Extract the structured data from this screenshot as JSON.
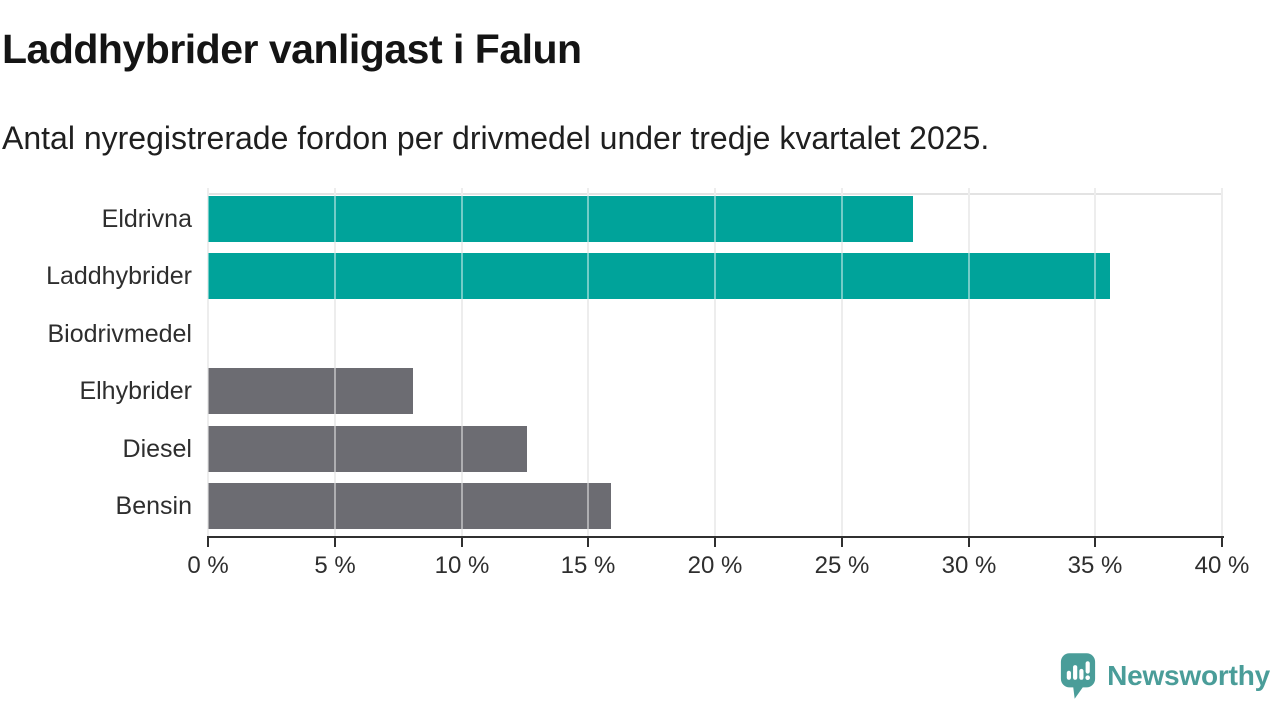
{
  "header": {
    "title": "Laddhybrider vanligast i Falun",
    "subtitle": "Antal nyregistrerade fordon per drivmedel under tredje kvartalet 2025."
  },
  "chart_data": {
    "type": "bar",
    "orientation": "horizontal",
    "title": "Laddhybrider vanligast i Falun",
    "subtitle": "Antal nyregistrerade fordon per drivmedel under tredje kvartalet 2025.",
    "categories": [
      "Eldrivna",
      "Laddhybrider",
      "Biodrivmedel",
      "Elhybrider",
      "Diesel",
      "Bensin"
    ],
    "values": [
      27.8,
      35.6,
      0,
      8.1,
      12.6,
      15.9
    ],
    "unit": "%",
    "bar_color_keys": [
      "highlight",
      "highlight",
      "default",
      "default",
      "default",
      "default"
    ],
    "colors": {
      "highlight": "#00a39a",
      "default": "#6c6c72",
      "gridline": "#dfdfdf",
      "axis": "#303030",
      "text": "#2e2e2e"
    },
    "xlabel": "",
    "ylabel": "",
    "xlim": [
      0,
      40
    ],
    "x_tick_values": [
      0,
      5,
      10,
      15,
      20,
      25,
      30,
      35,
      40
    ],
    "x_tick_labels": [
      "0 %",
      "5 %",
      "10 %",
      "15 %",
      "20 %",
      "25 %",
      "30 %",
      "35 %",
      "40 %"
    ],
    "grid": true,
    "legend": false
  },
  "footer": {
    "brand": "Newsworthy",
    "brand_color": "#4a9d99",
    "logo_icon": "newsworthy-bubble-barchart-icon"
  }
}
